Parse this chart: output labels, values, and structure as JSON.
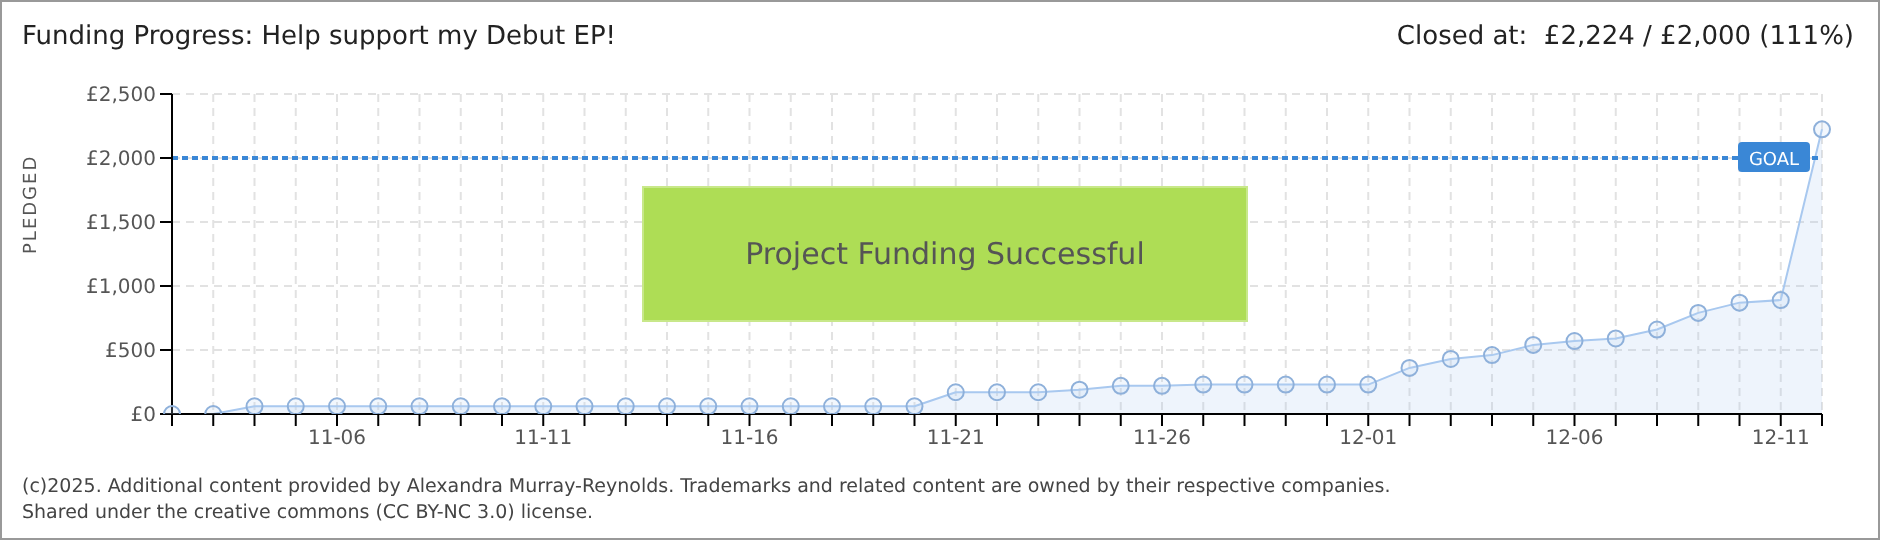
{
  "chart_data": {
    "type": "area",
    "title": "Funding Progress: Help support my Debut EP!",
    "subtitle": "Closed at:  £2,224 / £2,000 (111%)",
    "ylabel": "PLEDGED",
    "categories": [
      null,
      null,
      null,
      null,
      "11-06",
      null,
      null,
      null,
      null,
      "11-11",
      null,
      null,
      null,
      null,
      "11-16",
      null,
      null,
      null,
      null,
      "11-21",
      null,
      null,
      null,
      null,
      "11-26",
      null,
      null,
      null,
      null,
      "12-01",
      null,
      null,
      null,
      null,
      "12-06",
      null,
      null,
      null,
      null,
      "12-11",
      null
    ],
    "series": [
      {
        "color": "#a8c8ef",
        "values": [
          0,
          0,
          60,
          60,
          60,
          60,
          60,
          60,
          60,
          60,
          60,
          60,
          60,
          60,
          60,
          60,
          60,
          60,
          60,
          170,
          170,
          170,
          190,
          220,
          220,
          230,
          230,
          230,
          230,
          230,
          360,
          430,
          460,
          540,
          570,
          590,
          660,
          790,
          870,
          890,
          2224
        ]
      }
    ],
    "ylim": [
      0,
      2500
    ],
    "yticks": [
      {
        "value": 0,
        "label": "£0"
      },
      {
        "value": 500,
        "label": "£500"
      },
      {
        "value": 1000,
        "label": "£1,000"
      },
      {
        "value": 1500,
        "label": "£1,500"
      },
      {
        "value": 2000,
        "label": "£2,000"
      },
      {
        "value": 2500,
        "label": "£2,500"
      }
    ],
    "grid": true,
    "marker": "circle",
    "ref_lines": [
      {
        "axis": "y",
        "value": 2000,
        "label": "GOAL",
        "color": "#3a87d6",
        "line_style": "dotted"
      }
    ],
    "annotations": [
      "Project Funding Successful",
      "(c)2025. Additional content provided by Alexandra Murray-Reynolds. Trademarks and related content are owned by their respective companies.",
      "Shared under the creative commons (CC BY-NC 3.0) license."
    ]
  }
}
